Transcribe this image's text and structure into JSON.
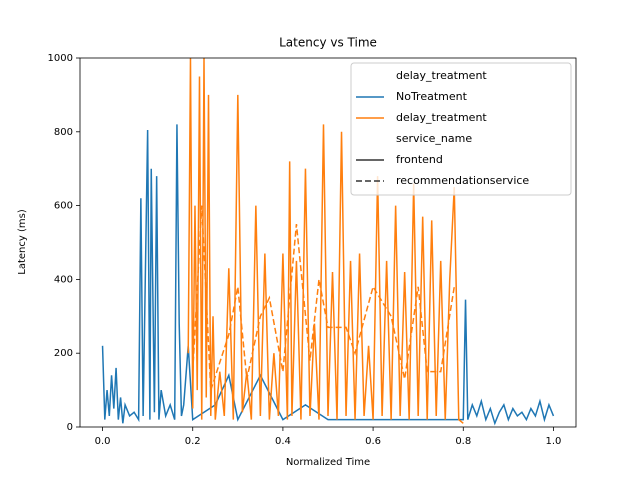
{
  "chart_data": {
    "type": "line",
    "title": "Latency vs Time",
    "x_label": "Normalized Time",
    "y_label": "Latency (ms)",
    "xlim": [
      -0.05,
      1.05
    ],
    "ylim": [
      0,
      1000
    ],
    "xticks": [
      {
        "value": 0,
        "label": "0.0"
      },
      0.2,
      0.4,
      0.6,
      0.8,
      {
        "value": 1,
        "label": "1.0"
      }
    ],
    "yticks": [
      0,
      200,
      400,
      600,
      800,
      1000
    ],
    "series": [
      {
        "color": "#1f77b4",
        "dash": "solid",
        "x": [
          0.0,
          0.005,
          0.01,
          0.015,
          0.02,
          0.025,
          0.03,
          0.035,
          0.04,
          0.045,
          0.05,
          0.06,
          0.07,
          0.08,
          0.085,
          0.09,
          0.1,
          0.105,
          0.108,
          0.115,
          0.12,
          0.125,
          0.13,
          0.14,
          0.15,
          0.16,
          0.165,
          0.17,
          0.175,
          0.18,
          0.19,
          0.2,
          0.25,
          0.28,
          0.3,
          0.35,
          0.4,
          0.45,
          0.5,
          0.8,
          0.805,
          0.81,
          0.82,
          0.83,
          0.84,
          0.85,
          0.86,
          0.87,
          0.88,
          0.89,
          0.9,
          0.91,
          0.92,
          0.93,
          0.94,
          0.95,
          0.96,
          0.97,
          0.98,
          0.99,
          1.0
        ],
        "values": [
          220,
          20,
          100,
          30,
          140,
          50,
          160,
          20,
          80,
          10,
          60,
          30,
          40,
          20,
          620,
          30,
          805,
          20,
          700,
          40,
          680,
          20,
          100,
          30,
          60,
          20,
          820,
          280,
          30,
          60,
          220,
          20,
          60,
          140,
          20,
          140,
          20,
          60,
          20,
          20,
          345,
          20,
          60,
          30,
          70,
          20,
          50,
          10,
          40,
          60,
          20,
          50,
          30,
          40,
          20,
          50,
          30,
          70,
          20,
          60,
          30
        ]
      },
      {
        "color": "#ff7f0e",
        "dash": "solid",
        "x": [
          0.19,
          0.195,
          0.2,
          0.205,
          0.21,
          0.215,
          0.22,
          0.225,
          0.23,
          0.235,
          0.24,
          0.245,
          0.25,
          0.26,
          0.27,
          0.28,
          0.29,
          0.3,
          0.31,
          0.32,
          0.33,
          0.34,
          0.35,
          0.36,
          0.37,
          0.38,
          0.39,
          0.4,
          0.41,
          0.415,
          0.42,
          0.43,
          0.44,
          0.45,
          0.46,
          0.47,
          0.48,
          0.49,
          0.5,
          0.51,
          0.52,
          0.53,
          0.54,
          0.55,
          0.56,
          0.57,
          0.58,
          0.59,
          0.6,
          0.61,
          0.62,
          0.63,
          0.64,
          0.65,
          0.66,
          0.67,
          0.68,
          0.69,
          0.7,
          0.71,
          0.72,
          0.73,
          0.74,
          0.75,
          0.76,
          0.77,
          0.78,
          0.79,
          0.8
        ],
        "values": [
          200,
          1000,
          50,
          600,
          100,
          950,
          20,
          1000,
          80,
          900,
          30,
          300,
          20,
          150,
          30,
          430,
          20,
          900,
          40,
          150,
          20,
          600,
          30,
          470,
          20,
          200,
          30,
          470,
          20,
          720,
          30,
          450,
          20,
          700,
          30,
          280,
          20,
          820,
          30,
          420,
          20,
          800,
          30,
          450,
          20,
          470,
          30,
          220,
          20,
          680,
          30,
          450,
          20,
          600,
          30,
          420,
          20,
          660,
          30,
          570,
          20,
          560,
          30,
          450,
          20,
          400,
          650,
          20,
          10
        ]
      },
      {
        "color": "#ff7f0e",
        "dash": "dashed",
        "x": [
          0.2,
          0.22,
          0.24,
          0.28,
          0.3,
          0.32,
          0.35,
          0.37,
          0.4,
          0.43,
          0.46,
          0.48,
          0.5,
          0.54,
          0.56,
          0.6,
          0.64,
          0.67,
          0.7,
          0.72,
          0.75,
          0.78
        ],
        "values": [
          150,
          600,
          100,
          250,
          380,
          130,
          300,
          350,
          150,
          550,
          180,
          400,
          270,
          270,
          200,
          380,
          300,
          130,
          380,
          150,
          150,
          380
        ]
      }
    ],
    "legend": {
      "loc": "upper right",
      "groups": [
        {
          "title": "delay_treatment",
          "items": [
            {
              "label": "NoTreatment",
              "color": "#1f77b4",
              "dash": "solid"
            },
            {
              "label": "delay_treatment",
              "color": "#ff7f0e",
              "dash": "solid"
            }
          ]
        },
        {
          "title": "service_name",
          "items": [
            {
              "label": "frontend",
              "color": "#333333",
              "dash": "solid"
            },
            {
              "label": "recommendationservice",
              "color": "#333333",
              "dash": "dashed"
            }
          ]
        }
      ]
    }
  }
}
